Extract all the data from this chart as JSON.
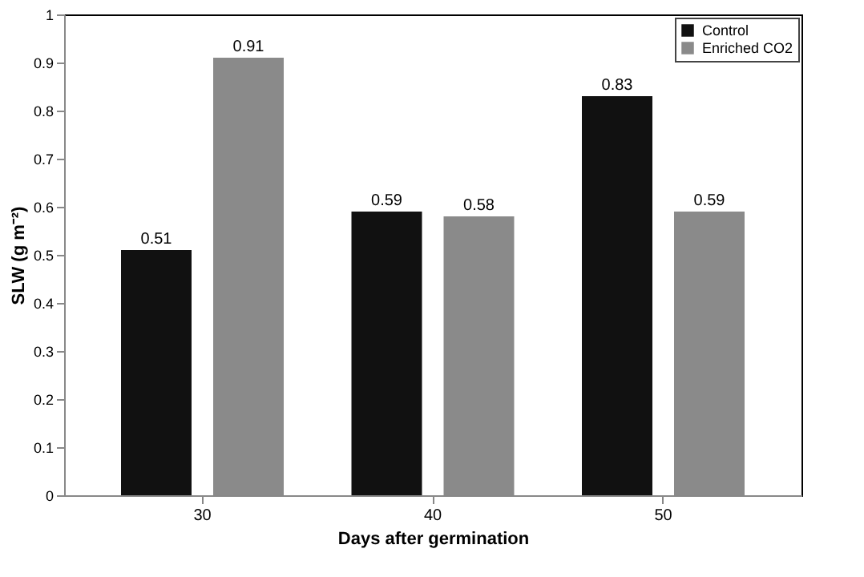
{
  "chart_data": {
    "type": "bar",
    "xlabel": "Days after germination",
    "ylabel": "SLW (g m⁻²)",
    "categories": [
      "30",
      "40",
      "50"
    ],
    "series": [
      {
        "name": "Control",
        "color": "#111111",
        "values": [
          0.51,
          0.59,
          0.83
        ]
      },
      {
        "name": "Enriched CO2",
        "color": "#8a8a8a",
        "values": [
          0.91,
          0.58,
          0.59
        ]
      }
    ],
    "ylim": [
      0,
      1
    ],
    "yticks": [
      0,
      0.1,
      0.2,
      0.3,
      0.4,
      0.5,
      0.6,
      0.7,
      0.8,
      0.9,
      1
    ],
    "data_labels": true,
    "grid": false,
    "legend": "top right"
  }
}
